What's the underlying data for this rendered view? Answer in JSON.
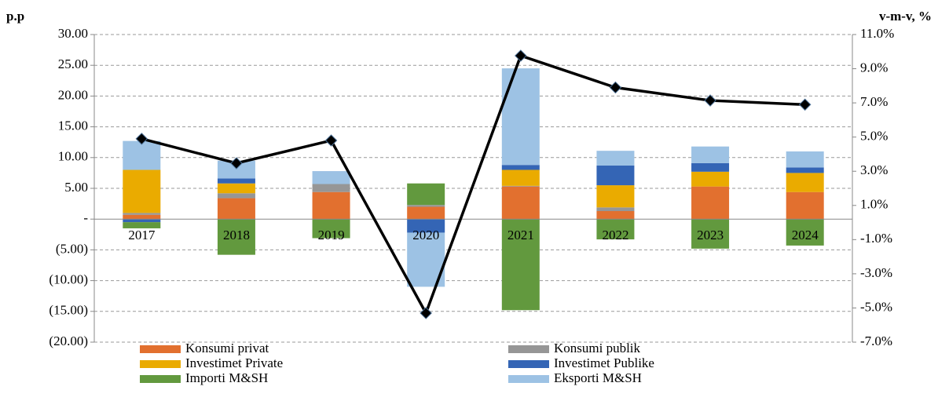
{
  "chart_data": {
    "type": "bar",
    "stacked": true,
    "y_label": "p.p",
    "y2_label": "v-m-v, %",
    "categories": [
      "2017",
      "2018",
      "2019",
      "2020",
      "2021",
      "2022",
      "2023",
      "2024"
    ],
    "series": [
      {
        "name": "Konsumi privat",
        "color": "#e2702f",
        "values": [
          0.7,
          3.4,
          4.4,
          2.0,
          5.3,
          1.3,
          5.3,
          4.4
        ]
      },
      {
        "name": "Konsumi publik",
        "color": "#969696",
        "values": [
          0.3,
          0.8,
          1.3,
          0.3,
          0.1,
          0.6,
          0,
          0
        ]
      },
      {
        "name": "Investimet Private",
        "color": "#eaab00",
        "values": [
          7.0,
          1.6,
          0,
          0,
          2.6,
          3.6,
          2.4,
          3.1
        ]
      },
      {
        "name": "Investimet Publike",
        "color": "#3465b5",
        "values": [
          -0.5,
          0.8,
          0,
          -2.2,
          0.8,
          3.2,
          1.4,
          0.9
        ]
      },
      {
        "name": "Importi M&SH",
        "color": "#62993e",
        "values": [
          -1.0,
          -5.8,
          -3.1,
          3.5,
          -14.8,
          -3.3,
          -4.8,
          -4.3
        ]
      },
      {
        "name": "Eksporti M&SH",
        "color": "#9dc2e4",
        "values": [
          4.7,
          2.9,
          2.1,
          -8.8,
          15.7,
          2.4,
          2.7,
          2.6
        ]
      },
      {
        "type": "line",
        "axis": "y2",
        "color": "#000000",
        "values": [
          4.9,
          3.47,
          4.8,
          -5.3,
          9.76,
          7.9,
          7.14,
          6.9
        ]
      }
    ],
    "ylim": [
      -20,
      30
    ],
    "yticks": [
      {
        "value": 30,
        "label": "30.00"
      },
      {
        "value": 25,
        "label": "25.00"
      },
      {
        "value": 20,
        "label": "20.00"
      },
      {
        "value": 15,
        "label": "15.00"
      },
      {
        "value": 10,
        "label": "10.00"
      },
      {
        "value": 5,
        "label": "5.00"
      },
      {
        "value": 0,
        "label": "-"
      },
      {
        "value": -5,
        "label": "(5.00)"
      },
      {
        "value": -10,
        "label": "(10.00)"
      },
      {
        "value": -15,
        "label": "(15.00)"
      },
      {
        "value": -20,
        "label": "(20.00)"
      }
    ],
    "y2lim": [
      -7,
      11
    ],
    "y2ticks": [
      {
        "value": 11,
        "label": "11.0%"
      },
      {
        "value": 9,
        "label": "9.0%"
      },
      {
        "value": 7,
        "label": "7.0%"
      },
      {
        "value": 5,
        "label": "5.0%"
      },
      {
        "value": 3,
        "label": "3.0%"
      },
      {
        "value": 1,
        "label": "1.0%"
      },
      {
        "value": -1,
        "label": "-1.0%"
      },
      {
        "value": -3,
        "label": "-3.0%"
      },
      {
        "value": -5,
        "label": "-5.0%"
      },
      {
        "value": -7,
        "label": "-7.0%"
      }
    ],
    "grid": true,
    "legend": "bottom"
  }
}
